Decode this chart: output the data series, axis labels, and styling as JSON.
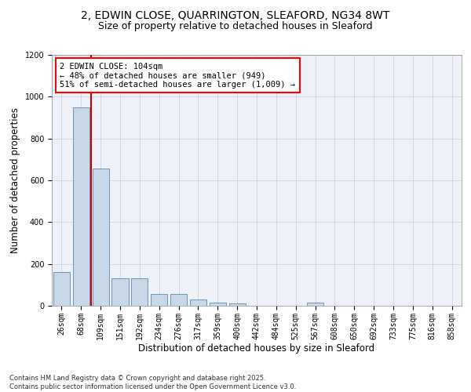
{
  "title_line1": "2, EDWIN CLOSE, QUARRINGTON, SLEAFORD, NG34 8WT",
  "title_line2": "Size of property relative to detached houses in Sleaford",
  "xlabel": "Distribution of detached houses by size in Sleaford",
  "ylabel": "Number of detached properties",
  "footnote": "Contains HM Land Registry data © Crown copyright and database right 2025.\nContains public sector information licensed under the Open Government Licence v3.0.",
  "categories": [
    "26sqm",
    "68sqm",
    "109sqm",
    "151sqm",
    "192sqm",
    "234sqm",
    "276sqm",
    "317sqm",
    "359sqm",
    "400sqm",
    "442sqm",
    "484sqm",
    "525sqm",
    "567sqm",
    "608sqm",
    "650sqm",
    "692sqm",
    "733sqm",
    "775sqm",
    "816sqm",
    "858sqm"
  ],
  "values": [
    162,
    949,
    655,
    130,
    130,
    57,
    57,
    30,
    15,
    10,
    0,
    0,
    0,
    15,
    0,
    0,
    0,
    0,
    0,
    0,
    0
  ],
  "bar_color": "#c8d8e8",
  "bar_edge_color": "#5a8ab0",
  "grid_color": "#d0d8e0",
  "background_color": "#eef2f8",
  "vline_color": "#cc0000",
  "annotation_box_text": "2 EDWIN CLOSE: 104sqm\n← 48% of detached houses are smaller (949)\n51% of semi-detached houses are larger (1,009) →",
  "ylim": [
    0,
    1200
  ],
  "yticks": [
    0,
    200,
    400,
    600,
    800,
    1000,
    1200
  ],
  "title_fontsize": 10,
  "subtitle_fontsize": 9,
  "axis_label_fontsize": 8.5,
  "tick_fontsize": 7,
  "annot_fontsize": 7.5
}
